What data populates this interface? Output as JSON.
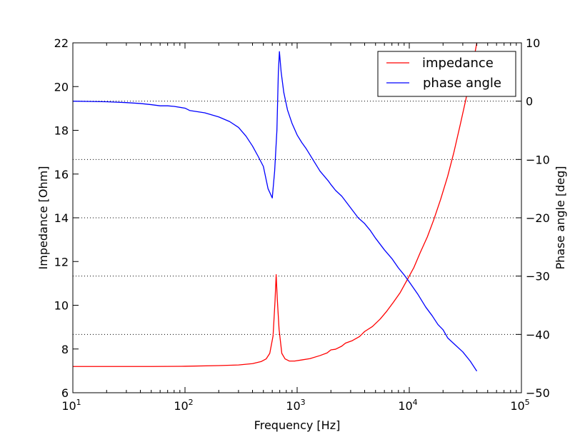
{
  "chart_data": {
    "type": "line",
    "xlabel": "Frequency [Hz]",
    "ylabel_left": "Impedance [Ohm]",
    "ylabel_right": "Phase angle [deg]",
    "x_scale": "log",
    "xlim": [
      10,
      100000
    ],
    "ylim_left": [
      6,
      22
    ],
    "ylim_right": [
      -50,
      10
    ],
    "x_ticks": [
      {
        "value": 10,
        "base": "10",
        "exp": "1"
      },
      {
        "value": 100,
        "base": "10",
        "exp": "2"
      },
      {
        "value": 1000,
        "base": "10",
        "exp": "3"
      },
      {
        "value": 10000,
        "base": "10",
        "exp": "4"
      },
      {
        "value": 100000,
        "base": "10",
        "exp": "5"
      }
    ],
    "y_ticks_left": [
      "6",
      "8",
      "10",
      "12",
      "14",
      "16",
      "18",
      "20",
      "22"
    ],
    "y_ticks_right": [
      "−50",
      "−40",
      "−30",
      "−20",
      "−10",
      "0",
      "10"
    ],
    "grid": "dotted horizontal lines at right-axis ticks",
    "legend_position": "top-right",
    "series": [
      {
        "name": "impedance",
        "axis": "left",
        "color": "#ff0000",
        "points": [
          [
            10,
            7.2
          ],
          [
            50,
            7.2
          ],
          [
            100,
            7.21
          ],
          [
            200,
            7.24
          ],
          [
            300,
            7.27
          ],
          [
            400,
            7.33
          ],
          [
            480,
            7.43
          ],
          [
            530,
            7.55
          ],
          [
            570,
            7.8
          ],
          [
            610,
            8.6
          ],
          [
            635,
            10.2
          ],
          [
            650,
            11.4
          ],
          [
            665,
            10.3
          ],
          [
            690,
            8.9
          ],
          [
            730,
            7.8
          ],
          [
            780,
            7.55
          ],
          [
            850,
            7.45
          ],
          [
            950,
            7.45
          ],
          [
            1100,
            7.5
          ],
          [
            1300,
            7.56
          ],
          [
            1600,
            7.7
          ],
          [
            1850,
            7.82
          ],
          [
            2000,
            7.96
          ],
          [
            2200,
            7.99
          ],
          [
            2500,
            8.13
          ],
          [
            2700,
            8.27
          ],
          [
            3100,
            8.38
          ],
          [
            3600,
            8.57
          ],
          [
            4000,
            8.8
          ],
          [
            4700,
            9.03
          ],
          [
            5500,
            9.37
          ],
          [
            6300,
            9.73
          ],
          [
            7200,
            10.13
          ],
          [
            8300,
            10.58
          ],
          [
            9500,
            11.13
          ],
          [
            11000,
            11.73
          ],
          [
            12500,
            12.4
          ],
          [
            14500,
            13.13
          ],
          [
            16500,
            13.9
          ],
          [
            19000,
            14.83
          ],
          [
            22000,
            15.9
          ],
          [
            25000,
            17.0
          ],
          [
            28500,
            18.27
          ],
          [
            32000,
            19.43
          ],
          [
            36000,
            20.73
          ],
          [
            40000,
            22.0
          ]
        ]
      },
      {
        "name": "phase angle",
        "axis": "right",
        "color": "#0000ff",
        "points": [
          [
            10,
            0
          ],
          [
            20,
            -0.1
          ],
          [
            30,
            -0.25
          ],
          [
            40,
            -0.4
          ],
          [
            50,
            -0.6
          ],
          [
            60,
            -0.8
          ],
          [
            70,
            -0.8
          ],
          [
            80,
            -0.9
          ],
          [
            100,
            -1.2
          ],
          [
            110,
            -1.6
          ],
          [
            150,
            -2.0
          ],
          [
            200,
            -2.7
          ],
          [
            250,
            -3.5
          ],
          [
            300,
            -4.5
          ],
          [
            350,
            -6.0
          ],
          [
            400,
            -7.7
          ],
          [
            450,
            -9.5
          ],
          [
            500,
            -11.2
          ],
          [
            550,
            -15.0
          ],
          [
            600,
            -16.6
          ],
          [
            630,
            -12.0
          ],
          [
            660,
            -5.0
          ],
          [
            680,
            5.0
          ],
          [
            695,
            8.5
          ],
          [
            720,
            5.0
          ],
          [
            760,
            1.5
          ],
          [
            820,
            -1.5
          ],
          [
            900,
            -3.8
          ],
          [
            1000,
            -5.8
          ],
          [
            1100,
            -7.1
          ],
          [
            1200,
            -8.1
          ],
          [
            1400,
            -10.2
          ],
          [
            1600,
            -12.0
          ],
          [
            1900,
            -13.7
          ],
          [
            2000,
            -14.3
          ],
          [
            2200,
            -15.3
          ],
          [
            2500,
            -16.3
          ],
          [
            3000,
            -18.3
          ],
          [
            3500,
            -20.0
          ],
          [
            4000,
            -21.0
          ],
          [
            4500,
            -22.2
          ],
          [
            5000,
            -23.5
          ],
          [
            6000,
            -25.5
          ],
          [
            7000,
            -27.0
          ],
          [
            8000,
            -28.6
          ],
          [
            9000,
            -29.8
          ],
          [
            10000,
            -31.0
          ],
          [
            12000,
            -33.2
          ],
          [
            14000,
            -35.3
          ],
          [
            16000,
            -36.8
          ],
          [
            18000,
            -38.3
          ],
          [
            20000,
            -39.2
          ],
          [
            22000,
            -40.6
          ],
          [
            25000,
            -41.6
          ],
          [
            30000,
            -43.0
          ],
          [
            35000,
            -44.6
          ],
          [
            40000,
            -46.3
          ]
        ]
      }
    ]
  }
}
